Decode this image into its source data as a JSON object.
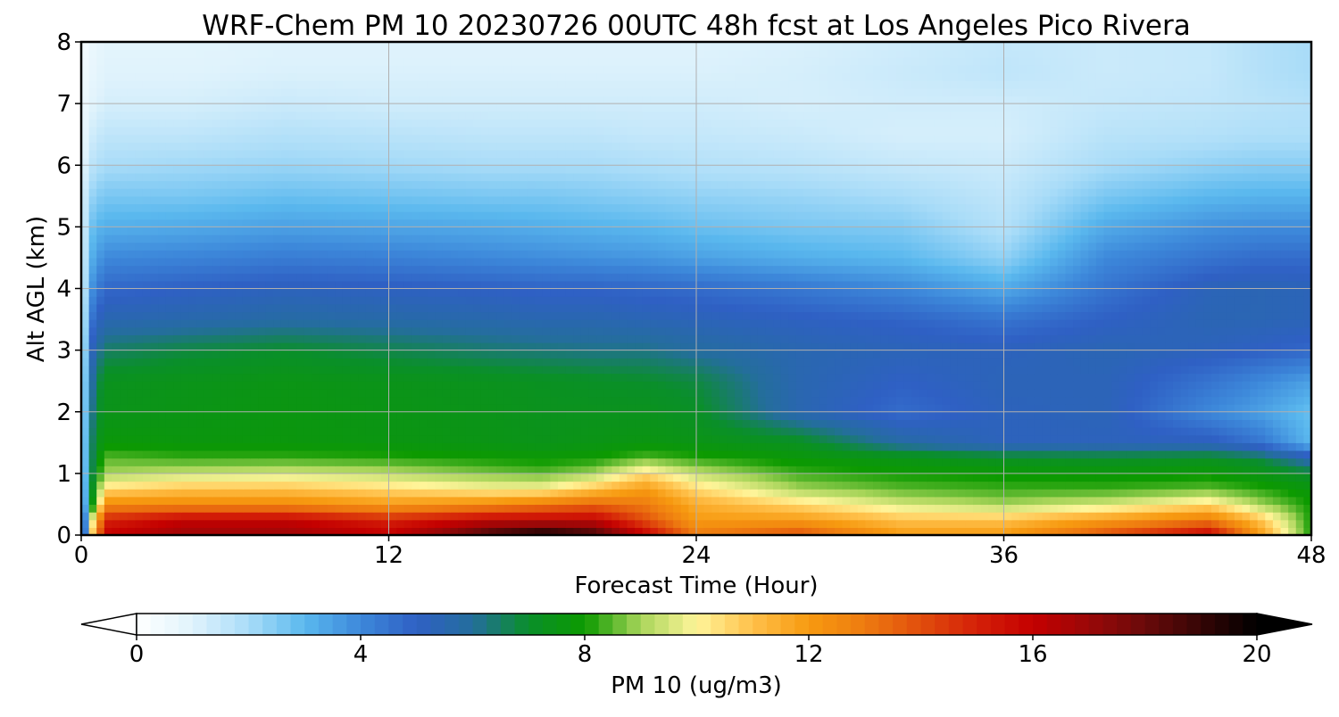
{
  "chart_data": {
    "type": "heatmap",
    "title": "WRF-Chem PM 10  20230726 00UTC 48h fcst at Los Angeles Pico Rivera",
    "xlabel": "Forecast Time (Hour)",
    "ylabel": "Alt AGL (km)",
    "xlim": [
      0,
      48
    ],
    "ylim": [
      0,
      8
    ],
    "xticks": [
      0,
      12,
      24,
      36,
      48
    ],
    "yticks": [
      0,
      1,
      2,
      3,
      4,
      5,
      6,
      7,
      8
    ],
    "grid": true,
    "colorbar": {
      "label": "PM 10  (ug/m3)",
      "range": [
        0,
        20
      ],
      "ticks": [
        0,
        4,
        8,
        12,
        16,
        20
      ],
      "extend": "both",
      "orientation": "horizontal",
      "stops": [
        {
          "value": 0,
          "color": "#ffffff"
        },
        {
          "value": 1,
          "color": "#e0f3fc"
        },
        {
          "value": 2,
          "color": "#a9dcf8"
        },
        {
          "value": 3,
          "color": "#5ab8ee"
        },
        {
          "value": 4,
          "color": "#3d88da"
        },
        {
          "value": 5,
          "color": "#2f60c4"
        },
        {
          "value": 6,
          "color": "#246e9c"
        },
        {
          "value": 7,
          "color": "#0a8f2a"
        },
        {
          "value": 8,
          "color": "#0c9a00"
        },
        {
          "value": 9,
          "color": "#a9d55a"
        },
        {
          "value": 10,
          "color": "#fff59a"
        },
        {
          "value": 11,
          "color": "#ffc04a"
        },
        {
          "value": 12,
          "color": "#f79a10"
        },
        {
          "value": 13,
          "color": "#ee7b10"
        },
        {
          "value": 15,
          "color": "#d42008"
        },
        {
          "value": 16,
          "color": "#c40000"
        },
        {
          "value": 17,
          "color": "#9a0808"
        },
        {
          "value": 18,
          "color": "#6a0a0a"
        },
        {
          "value": 20,
          "color": "#000000"
        }
      ]
    },
    "x_hours": [
      0,
      0.5,
      1,
      4,
      8,
      12,
      16,
      18,
      20,
      22,
      24,
      28,
      32,
      36,
      40,
      44,
      46,
      48
    ],
    "altitudes_km": [
      0,
      0.25,
      0.5,
      0.75,
      1,
      1.25,
      1.5,
      2,
      2.5,
      3,
      3.5,
      4,
      4.5,
      5,
      5.5,
      6,
      6.5,
      7,
      7.5,
      8
    ],
    "pm10_ugm3": [
      [
        1,
        12,
        16,
        17,
        17,
        16,
        19,
        20,
        19,
        16,
        13,
        14,
        12,
        12,
        14,
        16,
        12,
        8
      ],
      [
        1,
        11,
        15,
        16,
        16,
        15,
        16,
        16,
        16,
        14,
        12,
        12,
        11,
        11,
        12,
        13,
        11,
        8
      ],
      [
        1,
        8.5,
        12.5,
        12.5,
        12.5,
        12,
        12.5,
        13,
        13.5,
        13,
        11.5,
        10.5,
        9.5,
        9,
        9.5,
        10.5,
        9,
        8
      ],
      [
        1,
        8,
        10.5,
        11,
        11,
        10.5,
        10,
        10,
        11,
        12,
        10.5,
        9,
        8.5,
        8.3,
        8.3,
        8.5,
        8.2,
        7.7
      ],
      [
        1,
        7.5,
        9,
        9.3,
        9.5,
        9.2,
        8.7,
        8.5,
        9,
        10.5,
        9.3,
        8.3,
        8,
        7.9,
        7.8,
        7.9,
        7.5,
        7
      ],
      [
        1,
        7.3,
        8.5,
        8.3,
        8.3,
        8.2,
        8,
        7.9,
        8,
        8.5,
        8.2,
        7.8,
        7.5,
        7.2,
        7.1,
        7.2,
        6.8,
        5.5
      ],
      [
        1,
        7.2,
        7.8,
        7.7,
        7.7,
        7.6,
        7.5,
        7.4,
        7.5,
        7.6,
        7.5,
        7.2,
        5.8,
        5.2,
        5.2,
        5.2,
        4.5,
        3
      ],
      [
        1,
        6.8,
        7.4,
        7.5,
        7.6,
        7.5,
        7.4,
        7.3,
        7.3,
        7.3,
        7.1,
        5.5,
        4.7,
        5.2,
        5.3,
        4,
        3.5,
        2.8
      ],
      [
        1,
        6.5,
        7.3,
        7.4,
        7.5,
        7.4,
        7.3,
        7.2,
        7.1,
        7,
        6.8,
        5.5,
        5,
        5.3,
        5.3,
        4.5,
        4,
        3.5
      ],
      [
        1,
        5.8,
        6.5,
        6.8,
        7,
        6.7,
        6.4,
        6.3,
        6.2,
        6.2,
        5.9,
        5.5,
        5.3,
        5.2,
        5.4,
        5.2,
        5,
        4.8
      ],
      [
        1,
        5,
        5.5,
        5.6,
        5.8,
        5.7,
        5.6,
        5.5,
        5.5,
        5.4,
        5.3,
        5.1,
        4.9,
        4.5,
        5,
        5.4,
        5.4,
        5.3
      ],
      [
        1,
        4.2,
        4.8,
        5,
        5.2,
        5.1,
        5,
        4.9,
        4.9,
        4.8,
        4.7,
        4.4,
        4,
        3.3,
        4.5,
        5.3,
        5.4,
        5.3
      ],
      [
        1,
        3.5,
        4,
        4.1,
        4.3,
        4.2,
        4,
        3.9,
        3.8,
        3.7,
        3.5,
        3.2,
        3,
        2.3,
        4,
        4.5,
        4.7,
        4.7
      ],
      [
        1,
        3,
        3.2,
        3.3,
        3.5,
        3.4,
        3.3,
        3.2,
        3.1,
        3,
        2.8,
        2.6,
        2.5,
        1.8,
        3.3,
        3.8,
        3.9,
        3.9
      ],
      [
        1,
        2.4,
        2.6,
        2.6,
        2.8,
        2.7,
        2.6,
        2.6,
        2.5,
        2.4,
        2.3,
        2.2,
        2,
        1.6,
        2.6,
        3,
        3.1,
        3.1
      ],
      [
        0.8,
        1.8,
        2,
        2.1,
        2.2,
        2.1,
        2,
        2,
        2,
        1.9,
        1.8,
        1.7,
        1.5,
        1.4,
        2,
        2.3,
        2.4,
        2.4
      ],
      [
        0.6,
        1.4,
        1.6,
        1.6,
        1.8,
        1.7,
        1.6,
        1.6,
        1.6,
        1.5,
        1.5,
        1.4,
        1.2,
        1.2,
        1.7,
        1.8,
        1.9,
        1.9
      ],
      [
        0.5,
        1,
        1.2,
        1.2,
        1.4,
        1.3,
        1.3,
        1.3,
        1.3,
        1.3,
        1.3,
        1.2,
        1.3,
        1.3,
        1.5,
        1.6,
        1.7,
        1.8
      ],
      [
        0.4,
        0.8,
        1,
        1,
        1.1,
        1.1,
        1.1,
        1.1,
        1.1,
        1.1,
        1.1,
        1.2,
        1.4,
        1.6,
        1.4,
        1.5,
        1.8,
        2
      ],
      [
        0.3,
        0.7,
        0.9,
        0.9,
        1,
        1,
        1,
        1,
        1,
        1,
        1,
        1.1,
        1.3,
        1.5,
        1.4,
        1.5,
        1.8,
        2
      ]
    ]
  }
}
